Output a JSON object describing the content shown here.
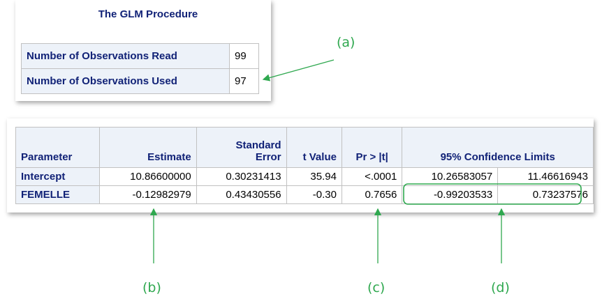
{
  "header": {
    "title": "The GLM Procedure"
  },
  "obs_table": {
    "rows": [
      [
        "Number of Observations Read",
        "99"
      ],
      [
        "Number of Observations Used",
        "97"
      ]
    ]
  },
  "param_table": {
    "headers": [
      "Parameter",
      "Estimate",
      "Standard Error",
      "t Value",
      "Pr > |t|",
      "95% Confidence Limits"
    ],
    "rows": [
      [
        "Intercept",
        "10.86600000",
        "0.30231413",
        "35.94",
        "<.0001",
        "10.26583057",
        "11.46616943"
      ],
      [
        "FEMELLE",
        "-0.12982979",
        "0.43430556",
        "-0.30",
        "0.7656",
        "-0.99203533",
        "0.73237576"
      ]
    ]
  },
  "annotations": [
    "(a)",
    "(b)",
    "(c)",
    "(d)"
  ]
}
